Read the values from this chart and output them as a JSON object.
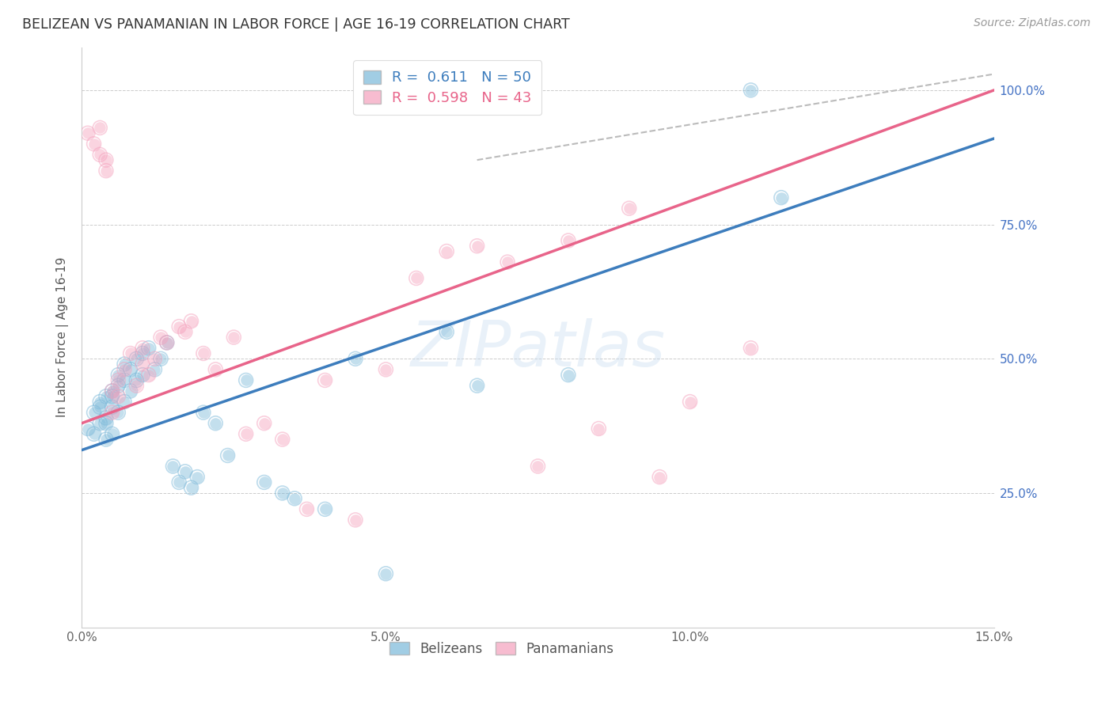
{
  "title": "BELIZEAN VS PANAMANIAN IN LABOR FORCE | AGE 16-19 CORRELATION CHART",
  "source": "Source: ZipAtlas.com",
  "ylabel": "In Labor Force | Age 16-19",
  "xlim": [
    0.0,
    0.15
  ],
  "ylim": [
    0.0,
    1.08
  ],
  "xtick_positions": [
    0.0,
    0.05,
    0.1,
    0.15
  ],
  "xtick_labels": [
    "0.0%",
    "5.0%",
    "10.0%",
    "15.0%"
  ],
  "ytick_positions": [
    0.25,
    0.5,
    0.75,
    1.0
  ],
  "ytick_labels": [
    "25.0%",
    "50.0%",
    "75.0%",
    "100.0%"
  ],
  "belizean_color": "#7ab8d9",
  "panamanian_color": "#f5a0bc",
  "belizean_line_color": "#3d7dbd",
  "panamanian_line_color": "#e8648a",
  "belizean_R": 0.611,
  "belizean_N": 50,
  "panamanian_R": 0.598,
  "panamanian_N": 43,
  "marker_size": 110,
  "watermark": "ZIPatlas",
  "blue_line_x0": 0.0,
  "blue_line_y0": 0.33,
  "blue_line_x1": 0.15,
  "blue_line_y1": 0.91,
  "pink_line_x0": 0.0,
  "pink_line_y0": 0.38,
  "pink_line_x1": 0.15,
  "pink_line_y1": 1.0,
  "dash_line_x0": 0.065,
  "dash_line_y0": 0.87,
  "dash_line_x1": 0.15,
  "dash_line_y1": 1.03,
  "blue_x": [
    0.001,
    0.002,
    0.002,
    0.003,
    0.003,
    0.003,
    0.004,
    0.004,
    0.004,
    0.004,
    0.005,
    0.005,
    0.005,
    0.005,
    0.006,
    0.006,
    0.006,
    0.007,
    0.007,
    0.007,
    0.008,
    0.008,
    0.009,
    0.009,
    0.01,
    0.01,
    0.011,
    0.012,
    0.013,
    0.014,
    0.015,
    0.016,
    0.017,
    0.018,
    0.019,
    0.02,
    0.022,
    0.024,
    0.027,
    0.03,
    0.033,
    0.035,
    0.04,
    0.045,
    0.05,
    0.06,
    0.065,
    0.08,
    0.11,
    0.115
  ],
  "blue_y": [
    0.37,
    0.4,
    0.36,
    0.42,
    0.38,
    0.41,
    0.39,
    0.43,
    0.38,
    0.35,
    0.41,
    0.43,
    0.36,
    0.44,
    0.45,
    0.4,
    0.47,
    0.42,
    0.46,
    0.49,
    0.48,
    0.44,
    0.5,
    0.46,
    0.51,
    0.47,
    0.52,
    0.48,
    0.5,
    0.53,
    0.3,
    0.27,
    0.29,
    0.26,
    0.28,
    0.4,
    0.38,
    0.32,
    0.46,
    0.27,
    0.25,
    0.24,
    0.22,
    0.5,
    0.1,
    0.55,
    0.45,
    0.47,
    1.0,
    0.8
  ],
  "pink_x": [
    0.001,
    0.002,
    0.003,
    0.003,
    0.004,
    0.004,
    0.005,
    0.005,
    0.006,
    0.006,
    0.007,
    0.008,
    0.009,
    0.01,
    0.01,
    0.011,
    0.012,
    0.013,
    0.014,
    0.016,
    0.017,
    0.018,
    0.02,
    0.022,
    0.025,
    0.027,
    0.03,
    0.033,
    0.037,
    0.04,
    0.045,
    0.05,
    0.055,
    0.06,
    0.065,
    0.07,
    0.075,
    0.08,
    0.085,
    0.09,
    0.095,
    0.1,
    0.11
  ],
  "pink_y": [
    0.92,
    0.9,
    0.88,
    0.93,
    0.85,
    0.87,
    0.4,
    0.44,
    0.46,
    0.43,
    0.48,
    0.51,
    0.45,
    0.52,
    0.49,
    0.47,
    0.5,
    0.54,
    0.53,
    0.56,
    0.55,
    0.57,
    0.51,
    0.48,
    0.54,
    0.36,
    0.38,
    0.35,
    0.22,
    0.46,
    0.2,
    0.48,
    0.65,
    0.7,
    0.71,
    0.68,
    0.3,
    0.72,
    0.37,
    0.78,
    0.28,
    0.42,
    0.52
  ]
}
